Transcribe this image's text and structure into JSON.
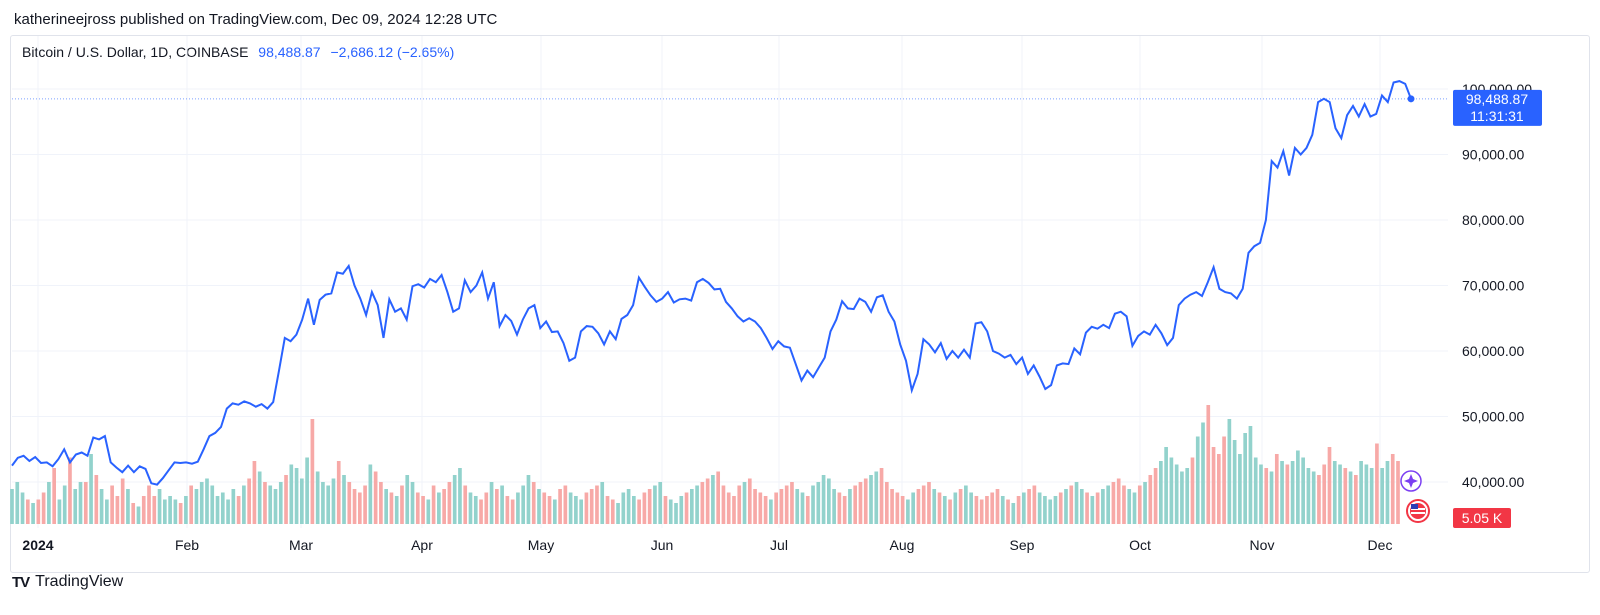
{
  "header": {
    "published": "katherineejross published on TradingView.com, Dec 09, 2024 12:28 UTC"
  },
  "legend": {
    "symbol": "Bitcoin / U.S. Dollar, 1D, COINBASE",
    "last": "98,488.87",
    "change": "−2,686.12 (−2.65%)"
  },
  "price_tag": {
    "price": "98,488.87",
    "countdown": "11:31:31",
    "color": "#2962ff"
  },
  "volume_tag": {
    "label": "5.05 K",
    "color": "#f23645"
  },
  "footer": {
    "brand": "TradingView",
    "logo": "TV"
  },
  "icons": {
    "sparkle": "sparkle-icon",
    "flag": "us-flag-icon"
  },
  "chart_data": {
    "type": "line",
    "x_ticks": [
      "2024",
      "Feb",
      "Mar",
      "Apr",
      "May",
      "Jun",
      "Jul",
      "Aug",
      "Sep",
      "Oct",
      "Nov",
      "Dec"
    ],
    "y_ticks": [
      "100,000.00",
      "90,000.00",
      "80,000.00",
      "70,000.00",
      "60,000.00",
      "50,000.00",
      "40,000.00"
    ],
    "ylim": [
      35000,
      102500
    ],
    "line_color": "#2962ff",
    "volume_up_color": "#92d2cc",
    "volume_down_color": "#f7a9a7",
    "series": [
      {
        "values": [
          42500,
          43700,
          44000,
          43200,
          43800,
          42900,
          43000,
          42400,
          43500,
          45000,
          43000,
          44200,
          44500,
          44000,
          46800,
          46500,
          47000,
          43000,
          42200,
          41500,
          42500,
          41500,
          42400,
          42000,
          39800,
          39600,
          40600,
          41800,
          43000,
          42900,
          43000,
          42800,
          43100,
          45000,
          47000,
          47500,
          48400,
          51200,
          52000,
          51800,
          52300,
          52000,
          51500,
          51900,
          51200,
          52200,
          57000,
          62000,
          61500,
          62500,
          64800,
          68000,
          64000,
          67800,
          68600,
          68800,
          72000,
          71800,
          73000,
          70000,
          68000,
          65500,
          69000,
          67000,
          62000,
          67900,
          66000,
          66500,
          64800,
          69900,
          70200,
          69700,
          71000,
          70500,
          71600,
          69000,
          66000,
          66500,
          70800,
          69000,
          70000,
          72000,
          68000,
          70500,
          63800,
          65500,
          64600,
          62500,
          64800,
          66500,
          67000,
          63500,
          64500,
          62900,
          63000,
          61200,
          58500,
          59000,
          63000,
          63800,
          63700,
          62700,
          61000,
          63000,
          61800,
          64900,
          65500,
          67000,
          71200,
          69800,
          68500,
          67500,
          68000,
          69000,
          67400,
          67900,
          68000,
          67700,
          70500,
          71000,
          70400,
          69400,
          69500,
          67500,
          66500,
          65300,
          64500,
          65000,
          64500,
          63500,
          62000,
          60300,
          61500,
          60700,
          60500,
          58000,
          55500,
          57000,
          56000,
          57500,
          59000,
          63000,
          64800,
          67600,
          66500,
          66400,
          68000,
          67500,
          66000,
          68200,
          68500,
          66000,
          64500,
          61000,
          58500,
          54000,
          56500,
          61800,
          61000,
          59800,
          61200,
          58800,
          60000,
          59000,
          60200,
          59000,
          64200,
          64400,
          63000,
          60000,
          59600,
          59000,
          59400,
          58000,
          59000,
          56500,
          57800,
          56100,
          54200,
          54800,
          57800,
          58100,
          58000,
          60400,
          59500,
          62800,
          63700,
          63400,
          64000,
          63500,
          65700,
          66000,
          65300,
          60800,
          62300,
          63000,
          62500,
          64000,
          62700,
          60900,
          62000,
          67000,
          68000,
          68600,
          69000,
          68400,
          70500,
          72800,
          69500,
          69000,
          68800,
          68000,
          69500,
          75000,
          76000,
          76500,
          80000,
          89000,
          88000,
          90500,
          86800,
          91000,
          90000,
          91000,
          93000,
          98000,
          98500,
          98000,
          94000,
          92500,
          96000,
          97400,
          95800,
          97700,
          95800,
          96200,
          99000,
          98000,
          101000,
          101200,
          100800,
          98500
        ]
      }
    ],
    "volume": [
      0.5,
      0.6,
      0.45,
      0.35,
      0.3,
      0.35,
      0.45,
      0.6,
      0.8,
      0.35,
      0.55,
      0.95,
      0.5,
      0.6,
      0.6,
      1.0,
      0.7,
      0.5,
      0.35,
      0.55,
      0.4,
      0.65,
      0.5,
      0.3,
      0.25,
      0.4,
      0.55,
      0.4,
      0.5,
      0.35,
      0.4,
      0.35,
      0.3,
      0.4,
      0.55,
      0.5,
      0.6,
      0.65,
      0.55,
      0.4,
      0.45,
      0.35,
      0.5,
      0.4,
      0.55,
      0.65,
      0.9,
      0.75,
      0.6,
      0.55,
      0.5,
      0.6,
      0.7,
      0.85,
      0.8,
      0.65,
      0.95,
      1.5,
      0.75,
      0.6,
      0.55,
      0.65,
      0.9,
      0.7,
      0.6,
      0.5,
      0.45,
      0.55,
      0.85,
      0.75,
      0.6,
      0.5,
      0.45,
      0.4,
      0.55,
      0.7,
      0.6,
      0.45,
      0.4,
      0.35,
      0.55,
      0.45,
      0.5,
      0.6,
      0.7,
      0.8,
      0.55,
      0.45,
      0.4,
      0.35,
      0.45,
      0.6,
      0.5,
      0.55,
      0.4,
      0.35,
      0.45,
      0.55,
      0.7,
      0.6,
      0.5,
      0.45,
      0.4,
      0.35,
      0.5,
      0.55,
      0.45,
      0.4,
      0.35,
      0.45,
      0.5,
      0.55,
      0.6,
      0.4,
      0.35,
      0.3,
      0.45,
      0.5,
      0.4,
      0.35,
      0.45,
      0.5,
      0.55,
      0.6,
      0.4,
      0.35,
      0.3,
      0.4,
      0.45,
      0.5,
      0.55,
      0.6,
      0.65,
      0.7,
      0.75,
      0.55,
      0.45,
      0.4,
      0.55,
      0.6,
      0.65,
      0.5,
      0.45,
      0.4,
      0.35,
      0.45,
      0.5,
      0.55,
      0.6,
      0.5,
      0.45,
      0.4,
      0.55,
      0.6,
      0.7,
      0.65,
      0.5,
      0.45,
      0.4,
      0.5,
      0.55,
      0.6,
      0.65,
      0.7,
      0.75,
      0.8,
      0.6,
      0.5,
      0.45,
      0.4,
      0.35,
      0.45,
      0.5,
      0.55,
      0.6,
      0.5,
      0.45,
      0.4,
      0.35,
      0.45,
      0.5,
      0.55,
      0.45,
      0.4,
      0.35,
      0.4,
      0.45,
      0.5,
      0.4,
      0.35,
      0.3,
      0.4,
      0.45,
      0.5,
      0.55,
      0.45,
      0.4,
      0.35,
      0.4,
      0.45,
      0.5,
      0.55,
      0.6,
      0.5,
      0.45,
      0.4,
      0.45,
      0.5,
      0.55,
      0.6,
      0.65,
      0.55,
      0.5,
      0.45,
      0.55,
      0.6,
      0.7,
      0.8,
      0.9,
      1.1,
      0.95,
      0.85,
      0.75,
      0.8,
      0.95,
      1.25,
      1.45,
      1.7,
      1.1,
      1.0,
      1.25,
      1.5,
      1.2,
      1.0,
      1.3,
      1.4,
      0.95,
      0.85,
      0.8,
      0.75,
      1.0,
      0.9,
      0.85,
      0.9,
      1.05,
      0.95,
      0.8,
      0.75,
      0.7,
      0.85,
      1.1,
      0.9,
      0.85,
      0.8,
      0.75,
      0.7,
      0.9,
      0.85,
      0.8,
      1.15,
      0.8,
      0.9,
      1.0,
      0.9
    ],
    "volume_note": "relative heights"
  }
}
